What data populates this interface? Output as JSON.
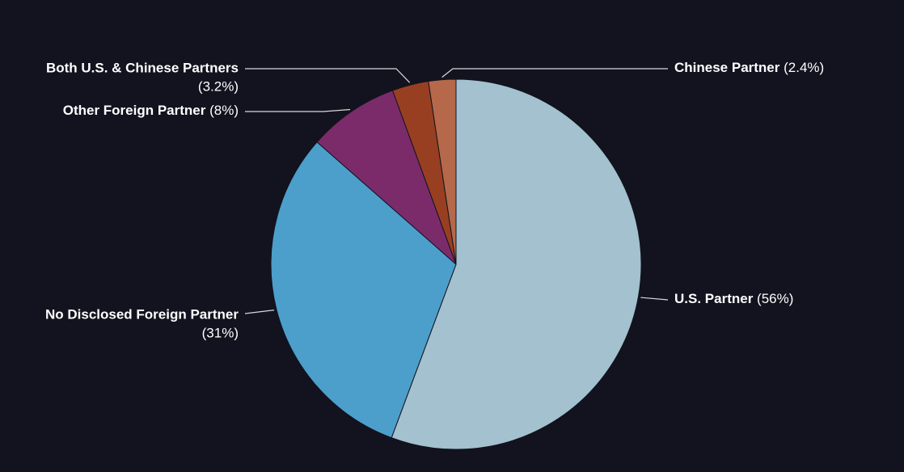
{
  "chart_data": {
    "type": "pie",
    "categories": [
      "U.S. Partner",
      "No Disclosed Foreign Partner",
      "Other Foreign Partner",
      "Both U.S. & Chinese Partners",
      "Chinese Partner"
    ],
    "values": [
      56,
      31,
      8,
      3.2,
      2.4
    ],
    "value_labels": [
      "(56%)",
      "(31%)",
      "(8%)",
      "(3.2%)",
      "(2.4%)"
    ],
    "colors": [
      "#a3c1ce",
      "#4c9fcb",
      "#7b2b6a",
      "#983f22",
      "#b5694a"
    ]
  }
}
